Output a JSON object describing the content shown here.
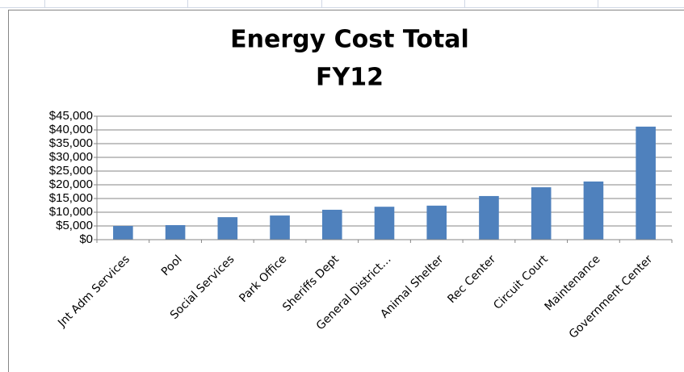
{
  "chart_data": {
    "type": "bar",
    "title": "Energy Cost Total",
    "subtitle": "FY12",
    "categories": [
      "Jnt Adm Services",
      "Pool",
      "Social Services",
      "Park Office",
      "Sheriffs Dept",
      "General District…",
      "Animal Shelter",
      "Rec Center",
      "Circuit Court",
      "Maintenance",
      "Government Center"
    ],
    "values": [
      5000,
      5300,
      8200,
      8800,
      10900,
      12000,
      12400,
      15900,
      19100,
      21200,
      41200
    ],
    "color": "#4f81bd",
    "ylim": [
      0,
      45000
    ],
    "yticks": [
      {
        "value": 0,
        "label": "$0"
      },
      {
        "value": 5000,
        "label": "$5,000"
      },
      {
        "value": 10000,
        "label": "$10,000"
      },
      {
        "value": 15000,
        "label": "$15,000"
      },
      {
        "value": 20000,
        "label": "$20,000"
      },
      {
        "value": 25000,
        "label": "$25,000"
      },
      {
        "value": 30000,
        "label": "$30,000"
      },
      {
        "value": 35000,
        "label": "$35,000"
      },
      {
        "value": 40000,
        "label": "$40,000"
      },
      {
        "value": 45000,
        "label": "$45,000"
      }
    ],
    "grid": true
  }
}
